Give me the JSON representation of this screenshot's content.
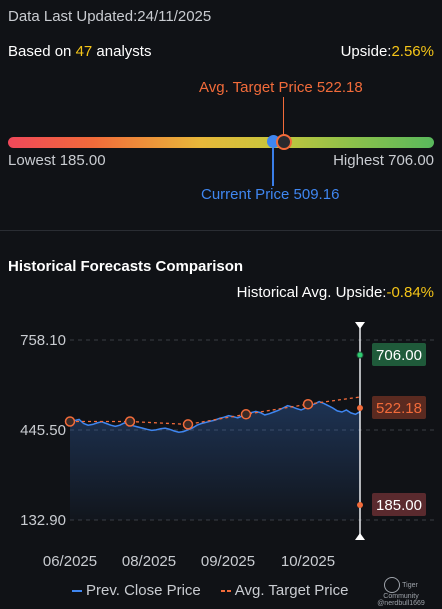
{
  "header": {
    "updated_label": "Data Last Updated:",
    "updated_date": "24/11/2025",
    "based_prefix": "Based on ",
    "analyst_count": "47",
    "based_suffix": " analysts",
    "upside_label": "Upside:",
    "upside_value": "2.56%"
  },
  "range": {
    "avg_target_label": "Avg. Target Price 522.18",
    "lowest_label": "Lowest 185.00",
    "highest_label": "Highest 706.00",
    "current_label": "Current Price 509.16",
    "low": 185.0,
    "high": 706.0,
    "current": 509.16,
    "avg_target": 522.18
  },
  "history": {
    "title": "Historical Forecasts Comparison",
    "upside_label": "Historical Avg. Upside:",
    "upside_value": "-0.84%"
  },
  "legend": {
    "close": "Prev. Close Price",
    "target": "Avg. Target Price"
  },
  "watermark": {
    "brand": "Tiger Community",
    "user": "@nerdbull1669"
  },
  "colors": {
    "close": "#3f86f0",
    "target": "#f26b3a",
    "high_tag": "#1f5a3a",
    "low_tag": "#5a2a2e"
  },
  "chart_data": {
    "type": "line",
    "y_ticks": [
      "758.10",
      "445.50",
      "132.90"
    ],
    "ylim": [
      132.9,
      758.1
    ],
    "x_labels": [
      "06/2025",
      "08/2025",
      "09/2025",
      "10/2025"
    ],
    "tags": {
      "high": "706.00",
      "avg": "522.18",
      "low": "185.00"
    },
    "series": [
      {
        "name": "Prev. Close Price",
        "values": [
          470,
          478,
          482,
          468,
          462,
          465,
          470,
          474,
          468,
          462,
          458,
          462,
          470,
          466,
          460,
          456,
          452,
          448,
          444,
          446,
          450,
          452,
          448,
          442,
          438,
          440,
          446,
          452,
          462,
          468,
          472,
          476,
          480,
          486,
          490,
          495,
          492,
          488,
          494,
          500,
          506,
          510,
          506,
          498,
          502,
          508,
          514,
          522,
          530,
          526,
          520,
          515,
          522,
          530,
          536,
          544,
          538,
          530,
          522,
          512,
          508,
          515,
          505,
          500,
          509
        ]
      },
      {
        "name": "Avg. Target Price",
        "values": [
          475,
          475,
          465,
          500,
          535,
          560,
          520
        ]
      }
    ]
  }
}
